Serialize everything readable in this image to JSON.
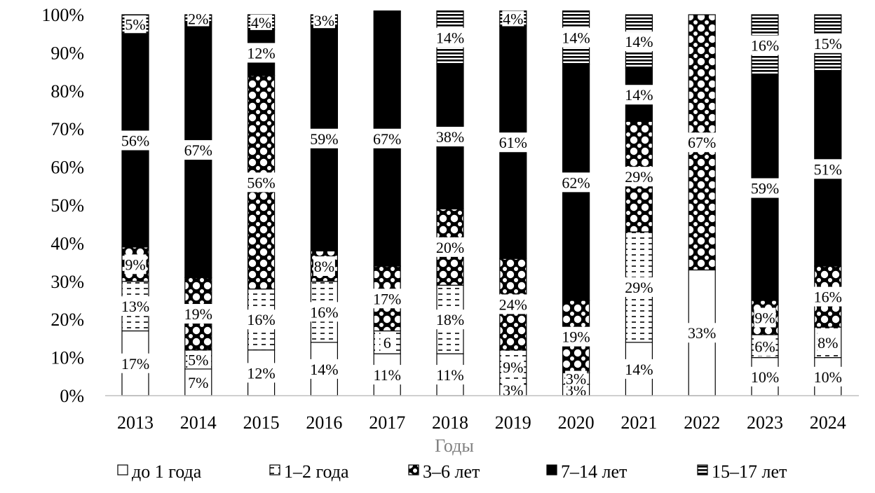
{
  "chart_data": {
    "type": "bar",
    "stacked": true,
    "percent": true,
    "xlabel": "Годы",
    "ylabel": "",
    "ylim": [
      0,
      100
    ],
    "yticks": [
      "0%",
      "10%",
      "20%",
      "30%",
      "40%",
      "50%",
      "60%",
      "70%",
      "80%",
      "90%",
      "100%"
    ],
    "categories": [
      "2013",
      "2014",
      "2015",
      "2016",
      "2017",
      "2018",
      "2019",
      "2020",
      "2021",
      "2022",
      "2023",
      "2024"
    ],
    "legend_position": "bottom",
    "series": [
      {
        "name": "до 1 года",
        "pattern": "white",
        "values": [
          17,
          7,
          12,
          14,
          11,
          11,
          3,
          3,
          14,
          33,
          10,
          10
        ],
        "labels": [
          "17%",
          "7%",
          "12%",
          "14%",
          "11%",
          "11%",
          "3%",
          "3%",
          "14%",
          "33%",
          "10%",
          "10%"
        ]
      },
      {
        "name": "1–2 года",
        "pattern": "dashes",
        "values": [
          13,
          5,
          16,
          16,
          6,
          18,
          9,
          3,
          29,
          0,
          6,
          8
        ],
        "labels": [
          "13%",
          "5%",
          "16%",
          "16%",
          "6",
          "18%",
          "9%",
          "3%",
          "29%",
          "",
          "6%",
          "8%"
        ]
      },
      {
        "name": "3–6 лет",
        "pattern": "diamonds",
        "values": [
          9,
          19,
          56,
          8,
          17,
          20,
          24,
          19,
          29,
          67,
          9,
          16
        ],
        "labels": [
          "9%",
          "19%",
          "56%",
          "8%",
          "17%",
          "20%",
          "24%",
          "19%",
          "29%",
          "67%",
          "9%",
          "16%"
        ]
      },
      {
        "name": "7–14 лет",
        "pattern": "black",
        "values": [
          56,
          67,
          12,
          59,
          67,
          38,
          61,
          62,
          14,
          0,
          59,
          51
        ],
        "labels": [
          "56%",
          "67%",
          "12%",
          "59%",
          "67%",
          "38%",
          "61%",
          "62%",
          "14%",
          "",
          "59%",
          "51%"
        ]
      },
      {
        "name": "15–17 лет",
        "pattern": "hlines",
        "values": [
          5,
          2,
          4,
          3,
          0,
          14,
          4,
          14,
          14,
          0,
          16,
          15
        ],
        "labels": [
          "5%",
          "2%",
          "4%",
          "3%",
          "",
          "14%",
          "4%",
          "14%",
          "14%",
          "",
          "16%",
          "15%"
        ]
      }
    ]
  }
}
